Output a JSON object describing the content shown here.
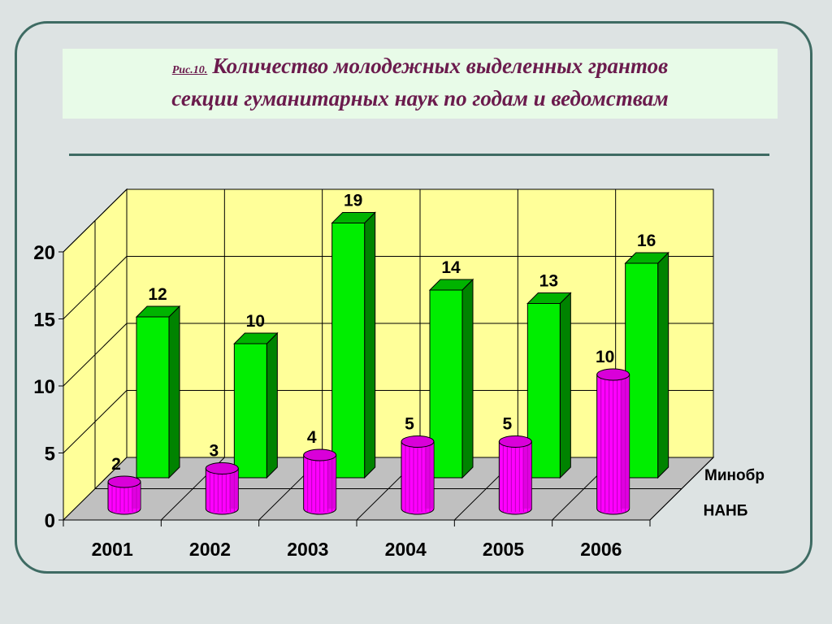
{
  "title": {
    "fig_label": "Рис.10.",
    "line1": "Количество молодежных выделенных грантов",
    "line2": "секции гуманитарных наук по годам и ведомствам"
  },
  "chart_data": {
    "type": "bar",
    "categories": [
      "2001",
      "2002",
      "2003",
      "2004",
      "2005",
      "2006"
    ],
    "series": [
      {
        "name": "НАНБ",
        "values": [
          2,
          3,
          4,
          5,
          5,
          10
        ],
        "color": "#ff00ff"
      },
      {
        "name": "Минобр",
        "values": [
          12,
          10,
          19,
          14,
          13,
          16
        ],
        "color": "#00ee00"
      }
    ],
    "y_ticks": [
      "0",
      "5",
      "10",
      "15",
      "20"
    ],
    "ylim": [
      0,
      20
    ],
    "grid": true,
    "wall_color": "#ffff99",
    "floor_color": "#c0c0c0"
  }
}
